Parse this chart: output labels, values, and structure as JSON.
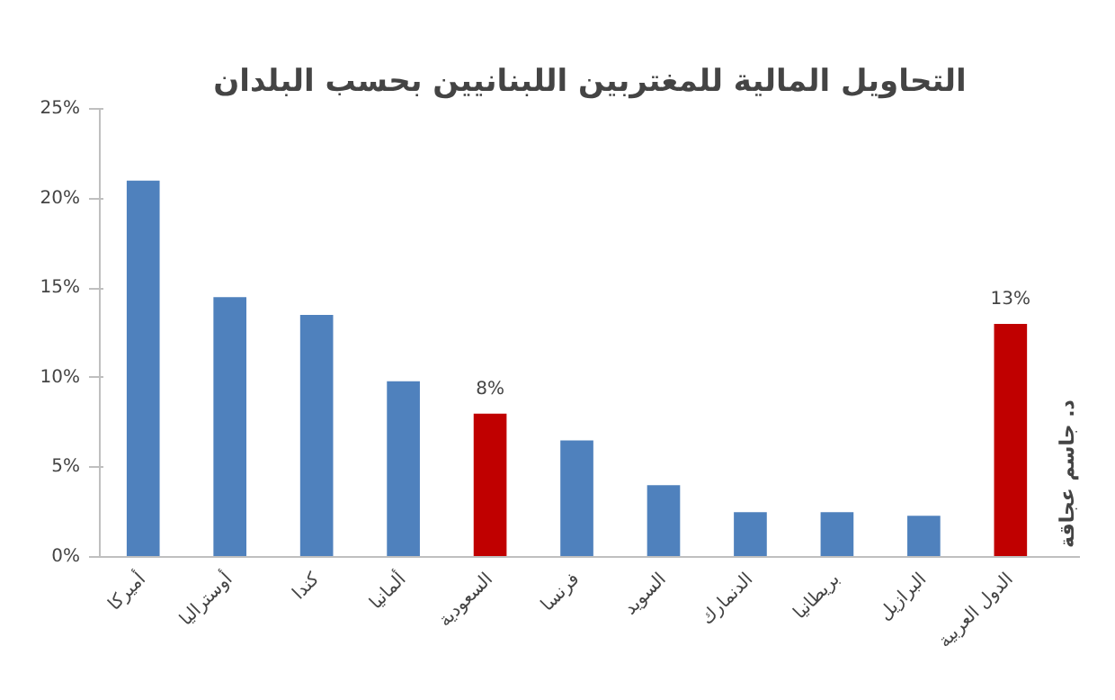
{
  "chart_data": {
    "type": "bar",
    "title": "التحاويل المالية للمغتربين اللبنانيين بحسب البلدان",
    "categories": [
      "أميركا",
      "أوستراليا",
      "كندا",
      "ألمانيا",
      "السعودية",
      "فرنسا",
      "السويد",
      "الدنمارك",
      "بريطانيا",
      "البرازيل",
      "الدول العربية"
    ],
    "values": [
      21,
      14.5,
      13.5,
      9.8,
      8,
      6.5,
      4,
      2.5,
      2.5,
      2.3,
      13
    ],
    "colors": [
      "#4f81bd",
      "#4f81bd",
      "#4f81bd",
      "#4f81bd",
      "#c00000",
      "#4f81bd",
      "#4f81bd",
      "#4f81bd",
      "#4f81bd",
      "#4f81bd",
      "#c00000"
    ],
    "value_labels": [
      null,
      null,
      null,
      null,
      "8%",
      null,
      null,
      null,
      null,
      null,
      "13%"
    ],
    "ylim": [
      0,
      25
    ],
    "yticks": [
      {
        "value": 0,
        "label": "0%"
      },
      {
        "value": 5,
        "label": "5%"
      },
      {
        "value": 10,
        "label": "10%"
      },
      {
        "value": 15,
        "label": "15%"
      },
      {
        "value": 20,
        "label": "20%"
      },
      {
        "value": 25,
        "label": "25%"
      }
    ],
    "grid": false,
    "annotations": [
      "د. جاسم عجاقة"
    ]
  }
}
